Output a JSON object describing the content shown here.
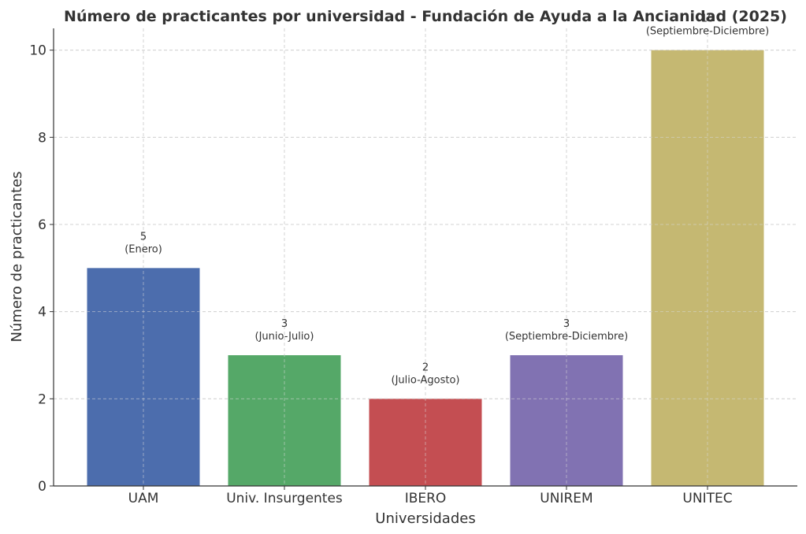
{
  "chart_data": {
    "type": "bar",
    "title": "Número de practicantes por universidad - Fundación de Ayuda a la Ancianidad (2025)",
    "xlabel": "Universidades",
    "ylabel": "Número de practicantes",
    "categories": [
      "UAM",
      "Univ. Insurgentes",
      "IBERO",
      "UNIREM",
      "UNITEC"
    ],
    "values": [
      5,
      3,
      2,
      3,
      10
    ],
    "periods": [
      "(Enero)",
      "(Junio-Julio)",
      "(Julio-Agosto)",
      "(Septiembre-Diciembre)",
      "(Septiembre-Diciembre)"
    ],
    "bar_colors": [
      "#4c6dad",
      "#55a868",
      "#c44e52",
      "#8172b2",
      "#c5b872"
    ],
    "ylim": [
      0,
      10.5
    ],
    "yticks": [
      0,
      2,
      4,
      6,
      8,
      10
    ],
    "grid": true,
    "legend": false
  }
}
